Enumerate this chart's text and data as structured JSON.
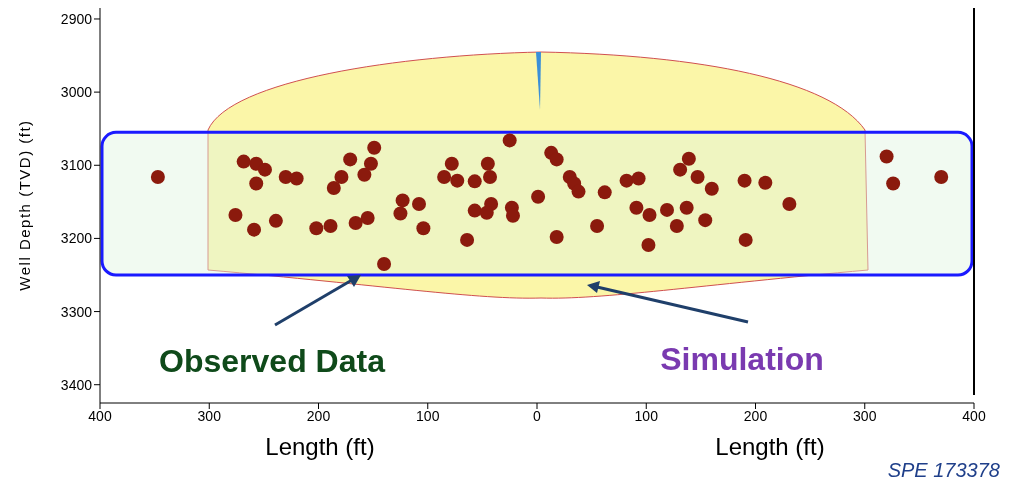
{
  "chart_data": {
    "type": "scatter",
    "xlabel": "Length (ft)",
    "ylabel": "Well Depth (TVD) (ft)",
    "annotations": [
      "Length (ft)",
      "Observed Data",
      "Simulation",
      "SPE 173378"
    ],
    "series": [
      {
        "color": "#8b1a0d",
        "x": [
          -347,
          -268.5,
          -257,
          -249,
          -257,
          -230,
          -220,
          -276,
          -259,
          -239,
          -171,
          -149,
          -152,
          -158,
          -179,
          -186,
          -202,
          -189,
          -166,
          -155,
          -140,
          -123,
          -108,
          -125,
          -104,
          -78,
          -85,
          -73,
          -57,
          -45,
          -43,
          -64,
          -57,
          -42,
          -46,
          -23,
          -22,
          -25,
          13,
          18,
          30,
          34,
          38,
          62,
          82,
          93,
          139,
          131,
          147,
          160,
          190,
          209,
          91,
          103,
          119,
          137,
          154,
          128,
          55,
          18,
          102,
          191,
          231,
          320,
          326,
          370,
          1
        ],
        "values": [
          3116,
          3095,
          3098,
          3106,
          3125,
          3116,
          3118,
          3168,
          3188,
          3176,
          3092,
          3076,
          3098,
          3113,
          3116,
          3131,
          3186,
          3183,
          3179,
          3172,
          3235,
          3148,
          3153,
          3166,
          3186,
          3098,
          3116,
          3121,
          3122,
          3098,
          3116,
          3202,
          3162,
          3153,
          3165,
          3158,
          3169,
          3066,
          3083,
          3092,
          3116,
          3125,
          3136,
          3137,
          3121,
          3118,
          3091,
          3106,
          3116,
          3132,
          3121,
          3124,
          3158,
          3168,
          3161,
          3158,
          3175,
          3183,
          3183,
          3198,
          3209,
          3202,
          3153,
          3088,
          3125,
          3116,
          3143
        ]
      }
    ],
    "xlim": [
      -400,
      400
    ],
    "xticks": [
      {
        "value": -400,
        "label": "400"
      },
      {
        "value": -300,
        "label": "300"
      },
      {
        "value": -200,
        "label": "200"
      },
      {
        "value": -100,
        "label": "100"
      },
      0,
      100,
      200,
      300,
      400
    ],
    "ylim": [
      3425,
      2885
    ],
    "yticks": [
      2900,
      3000,
      3100,
      3200,
      3300,
      3400
    ],
    "bands": [
      {
        "axis": "y",
        "from": 3055,
        "to": 3250,
        "color": "#1a1aff"
      }
    ],
    "marker": "circle"
  }
}
